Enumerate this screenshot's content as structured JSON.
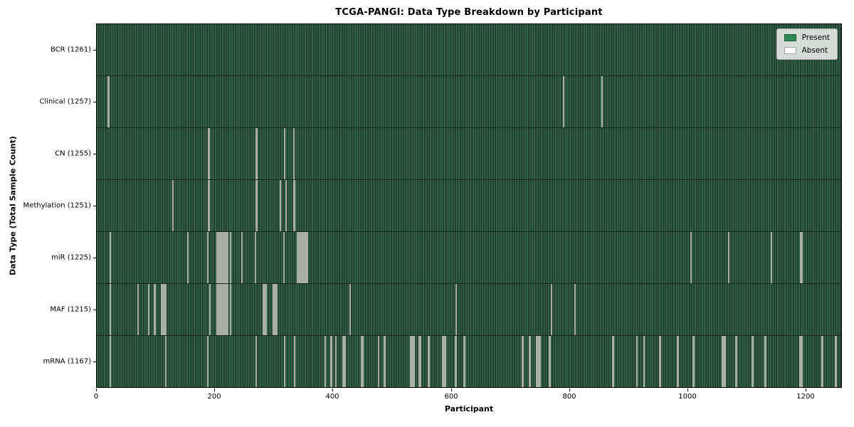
{
  "chart_data": {
    "type": "heatmap",
    "title": "TCGA-PANGI: Data Type Breakdown by Participant",
    "xlabel": "Participant",
    "ylabel": "Data Type (Total Sample Count)",
    "x_ticks": [
      0,
      200,
      400,
      600,
      800,
      1000,
      1200
    ],
    "n_participants": 1261,
    "grid": false,
    "legend": {
      "position": "upper right",
      "entries": [
        {
          "label": "Present",
          "color": "#2e8b57"
        },
        {
          "label": "Absent",
          "color": "#ffffff"
        }
      ]
    },
    "colors": {
      "present_fill": "#2e8b57",
      "present_stripe_light": "#336049",
      "present_stripe_dark": "#1f3a2b",
      "absent_stripe": "#a9afa6",
      "plot_border": "#000000"
    },
    "rows": [
      {
        "data_type": "BCR",
        "tick_label": "BCR (1261)",
        "total_samples": 1261,
        "absent_participants": []
      },
      {
        "data_type": "Clinical",
        "tick_label": "Clinical (1257)",
        "total_samples": 1257,
        "absent_participants": [
          19,
          20,
          790,
          856
        ]
      },
      {
        "data_type": "CN",
        "tick_label": "CN (1255)",
        "total_samples": 1255,
        "absent_participants": [
          189,
          190,
          270,
          271,
          318,
          334
        ]
      },
      {
        "data_type": "Methylation",
        "tick_label": "Methylation (1251)",
        "total_samples": 1251,
        "absent_participants": [
          128,
          129,
          189,
          190,
          270,
          271,
          310,
          320,
          334,
          335
        ]
      },
      {
        "data_type": "miR",
        "tick_label": "miR (1225)",
        "total_samples": 1225,
        "absent_participants": [
          22,
          154,
          187,
          203,
          204,
          205,
          207,
          209,
          211,
          212,
          213,
          215,
          217,
          219,
          221,
          226,
          245,
          268,
          317,
          340,
          341,
          342,
          344,
          346,
          348,
          350,
          352,
          353,
          354,
          356,
          1006,
          1070,
          1142,
          1192,
          1193,
          1194
        ]
      },
      {
        "data_type": "MAF",
        "tick_label": "MAF (1215)",
        "total_samples": 1215,
        "absent_participants": [
          22,
          70,
          87,
          88,
          97,
          98,
          109,
          110,
          111,
          112,
          113,
          114,
          115,
          117,
          191,
          203,
          204,
          205,
          207,
          208,
          209,
          211,
          213,
          215,
          217,
          219,
          221,
          226,
          281,
          282,
          283,
          284,
          285,
          287,
          298,
          299,
          300,
          301,
          302,
          303,
          304,
          305,
          429,
          608,
          770,
          810
        ]
      },
      {
        "data_type": "mRNA",
        "tick_label": "mRNA (1167)",
        "total_samples": 1167,
        "absent_participants": [
          22,
          23,
          116,
          187,
          188,
          270,
          318,
          335,
          386,
          387,
          396,
          397,
          404,
          405,
          417,
          418,
          419,
          420,
          448,
          449,
          450,
          477,
          486,
          487,
          488,
          531,
          532,
          533,
          534,
          535,
          536,
          537,
          546,
          547,
          548,
          561,
          562,
          585,
          586,
          587,
          588,
          589,
          590,
          607,
          608,
          621,
          622,
          623,
          721,
          722,
          733,
          734,
          744,
          745,
          746,
          747,
          748,
          749,
          750,
          766,
          767,
          768,
          874,
          875,
          914,
          915,
          926,
          927,
          953,
          954,
          983,
          984,
          1010,
          1011,
          1059,
          1060,
          1061,
          1062,
          1063,
          1064,
          1082,
          1083,
          1110,
          1111,
          1132,
          1133,
          1191,
          1192,
          1193,
          1194,
          1228,
          1229,
          1251,
          1252
        ]
      }
    ]
  }
}
